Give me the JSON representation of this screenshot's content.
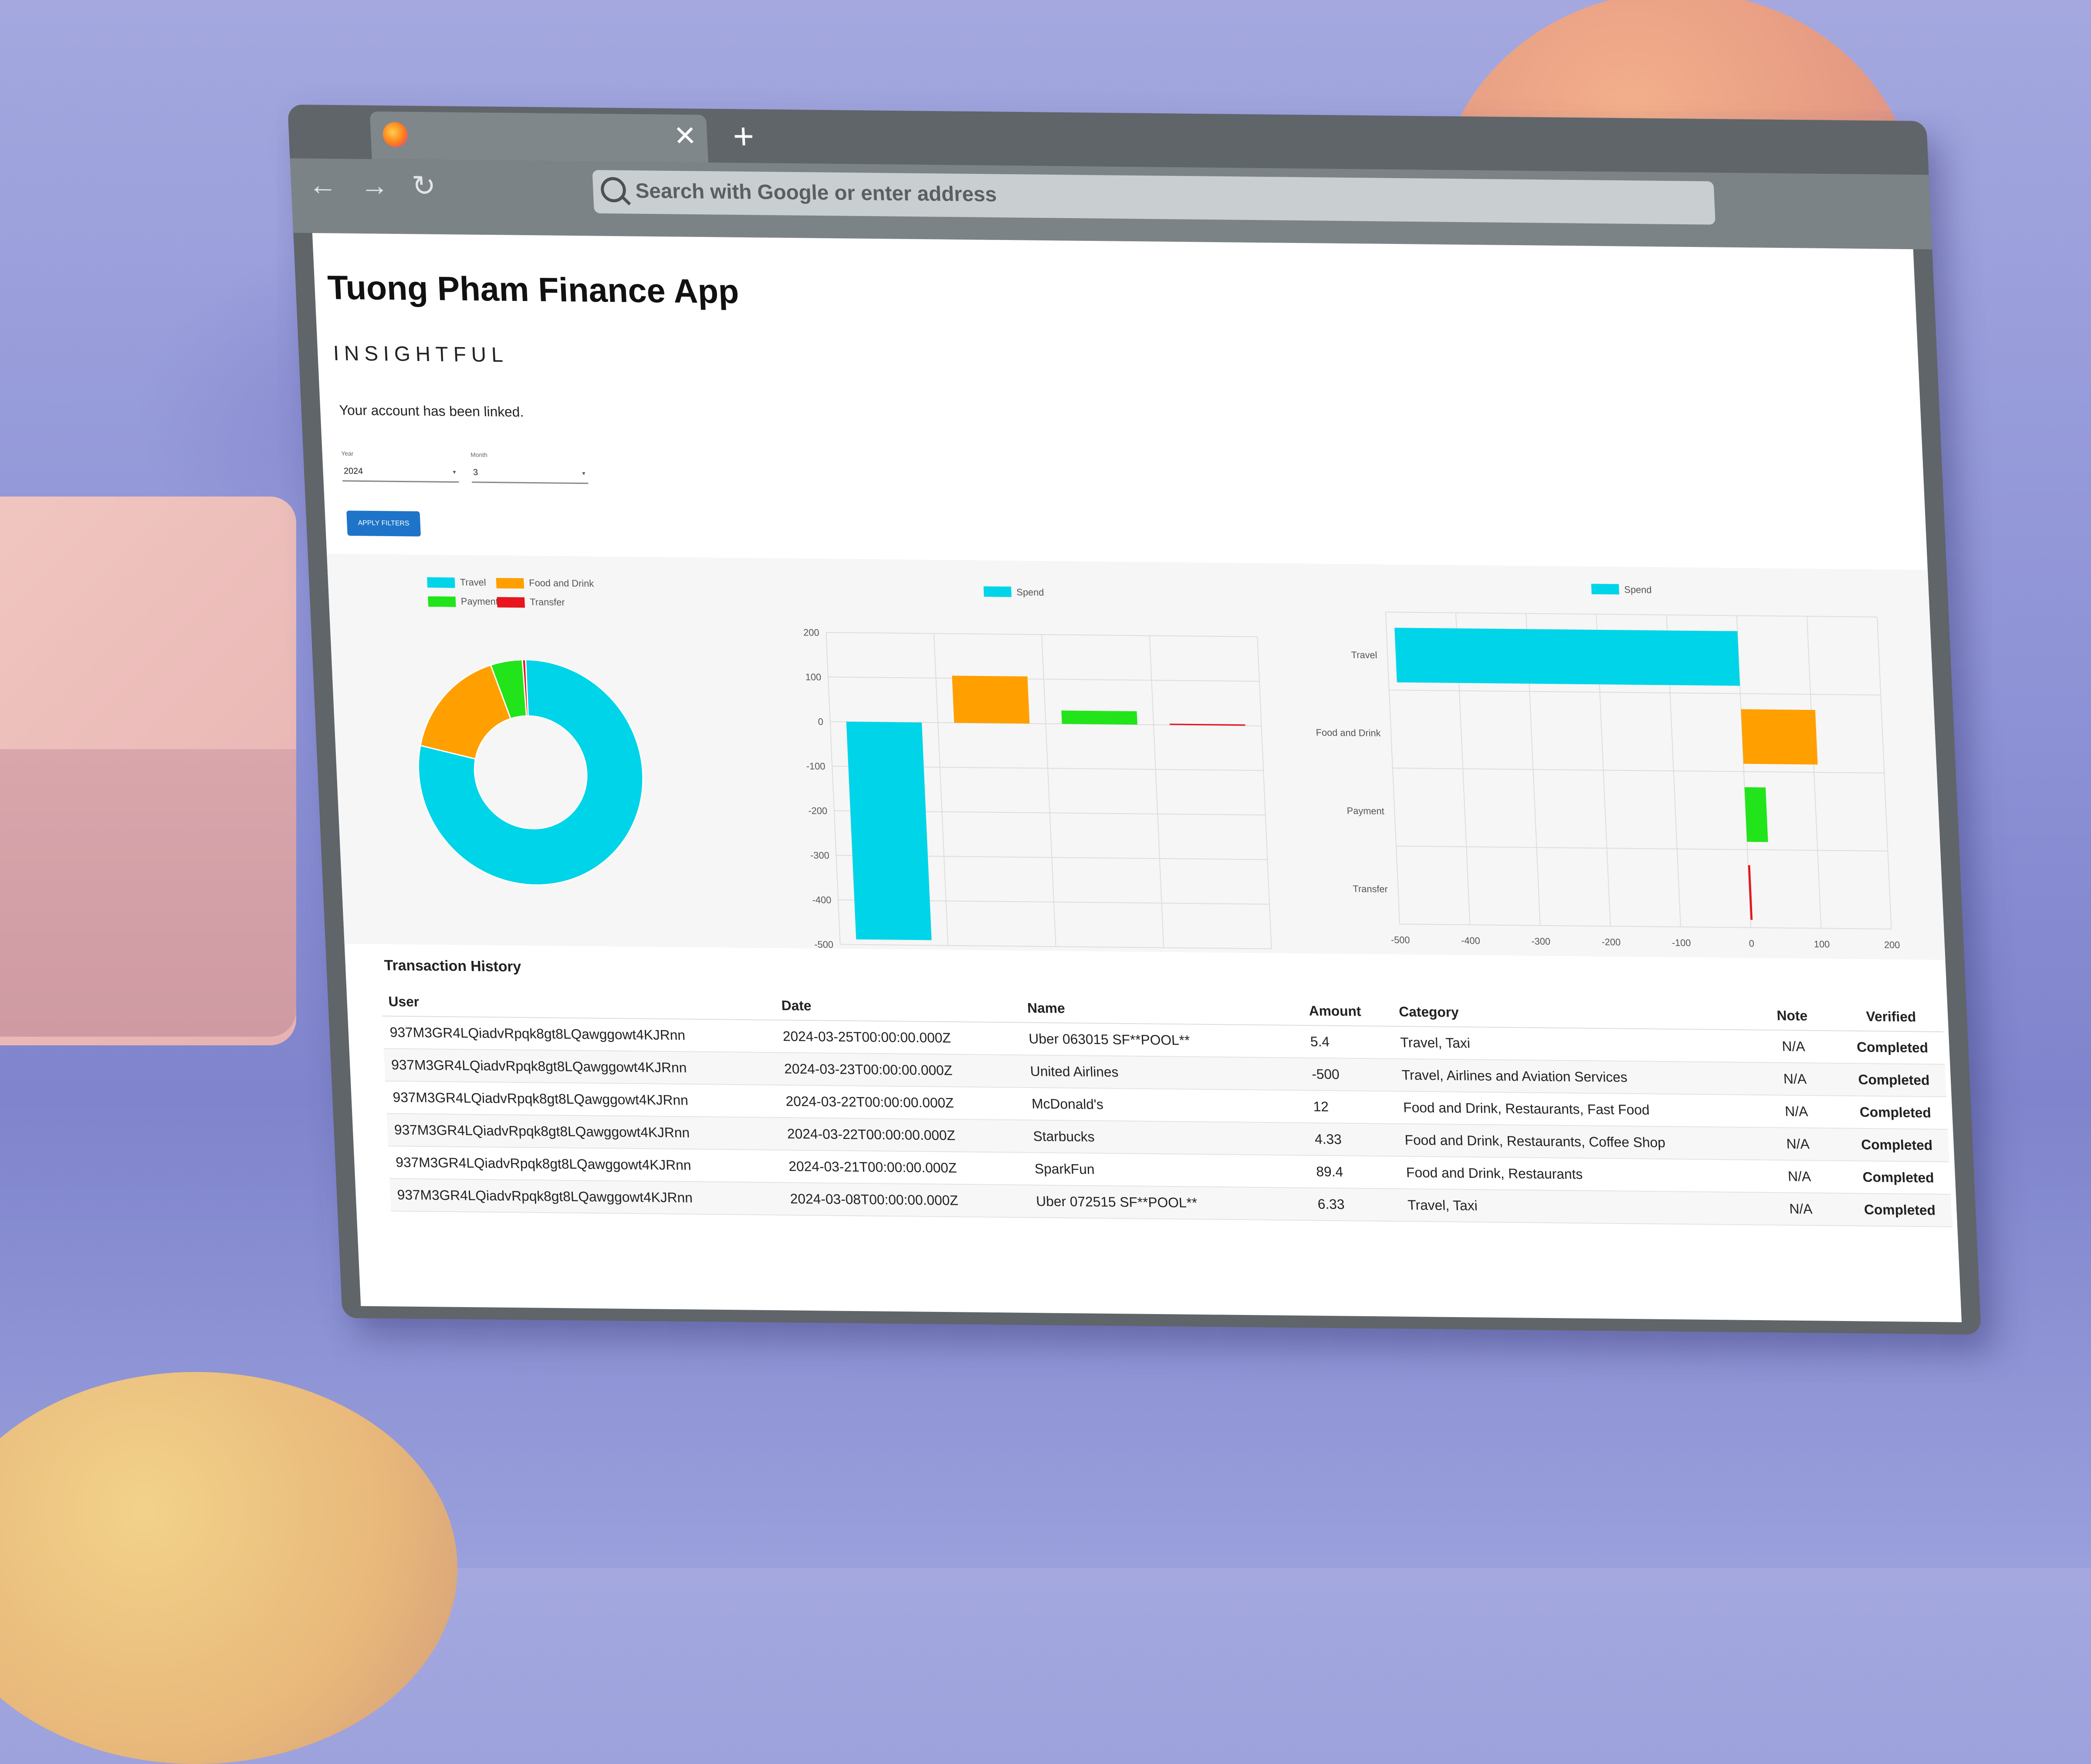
{
  "browser": {
    "search_placeholder": "Search with Google or enter address",
    "tab_close": "✕",
    "new_tab": "+",
    "back": "←",
    "forward": "→",
    "reload": "↻"
  },
  "app": {
    "title": "Tuong Pham Finance App",
    "subtitle": "INSIGHTFUL",
    "status": "Your account has been linked.",
    "filters": {
      "year_label": "Year",
      "year_value": "2024",
      "month_label": "Month",
      "month_value": "3",
      "apply_label": "APPLY FILTERS"
    }
  },
  "colors": {
    "travel": "#00d4e8",
    "food_and_drink": "#ff9f00",
    "payment": "#22e41a",
    "transfer": "#e8141e",
    "button": "#1e74c8"
  },
  "chart_data": [
    {
      "type": "pie",
      "variant": "donut",
      "legend": [
        "Travel",
        "Food and Drink",
        "Payment",
        "Transfer"
      ],
      "categories": [
        "Travel",
        "Food and Drink",
        "Payment",
        "Transfer"
      ],
      "values": [
        511.73,
        105.73,
        30,
        3
      ]
    },
    {
      "type": "bar",
      "legend": [
        "Spend"
      ],
      "categories": [
        "Travel",
        "Food and Drink",
        "Payment",
        "Transfer"
      ],
      "series": [
        {
          "name": "Spend",
          "values": [
            -488.3,
            105.7,
            30,
            3
          ]
        }
      ],
      "ylim": [
        -500,
        200
      ],
      "yticks": [
        "200",
        "100",
        "0",
        "-100",
        "-200",
        "-300",
        "-400",
        "-500"
      ],
      "grid": true
    },
    {
      "type": "bar",
      "orientation": "horizontal",
      "legend": [
        "Spend"
      ],
      "categories": [
        "Travel",
        "Food and Drink",
        "Payment",
        "Transfer"
      ],
      "series": [
        {
          "name": "Spend",
          "values": [
            -488.3,
            105.7,
            30,
            3
          ]
        }
      ],
      "xlim": [
        -500,
        200
      ],
      "xticks": [
        "-500",
        "-400",
        "-300",
        "-200",
        "-100",
        "0",
        "100",
        "200"
      ],
      "grid": true
    }
  ],
  "transactions": {
    "title": "Transaction History",
    "headers": [
      "User",
      "Date",
      "Name",
      "Amount",
      "Category",
      "Note",
      "Verified"
    ],
    "rows": [
      [
        "937M3GR4LQiadvRpqk8gt8LQawggowt4KJRnn",
        "2024-03-25T00:00:00.000Z",
        "Uber 063015 SF**POOL**",
        "5.4",
        "Travel, Taxi",
        "N/A",
        "Completed"
      ],
      [
        "937M3GR4LQiadvRpqk8gt8LQawggowt4KJRnn",
        "2024-03-23T00:00:00.000Z",
        "United Airlines",
        "-500",
        "Travel, Airlines and Aviation Services",
        "N/A",
        "Completed"
      ],
      [
        "937M3GR4LQiadvRpqk8gt8LQawggowt4KJRnn",
        "2024-03-22T00:00:00.000Z",
        "McDonald's",
        "12",
        "Food and Drink, Restaurants, Fast Food",
        "N/A",
        "Completed"
      ],
      [
        "937M3GR4LQiadvRpqk8gt8LQawggowt4KJRnn",
        "2024-03-22T00:00:00.000Z",
        "Starbucks",
        "4.33",
        "Food and Drink, Restaurants, Coffee Shop",
        "N/A",
        "Completed"
      ],
      [
        "937M3GR4LQiadvRpqk8gt8LQawggowt4KJRnn",
        "2024-03-21T00:00:00.000Z",
        "SparkFun",
        "89.4",
        "Food and Drink, Restaurants",
        "N/A",
        "Completed"
      ],
      [
        "937M3GR4LQiadvRpqk8gt8LQawggowt4KJRnn",
        "2024-03-08T00:00:00.000Z",
        "Uber 072515 SF**POOL**",
        "6.33",
        "Travel, Taxi",
        "N/A",
        "Completed"
      ]
    ]
  }
}
